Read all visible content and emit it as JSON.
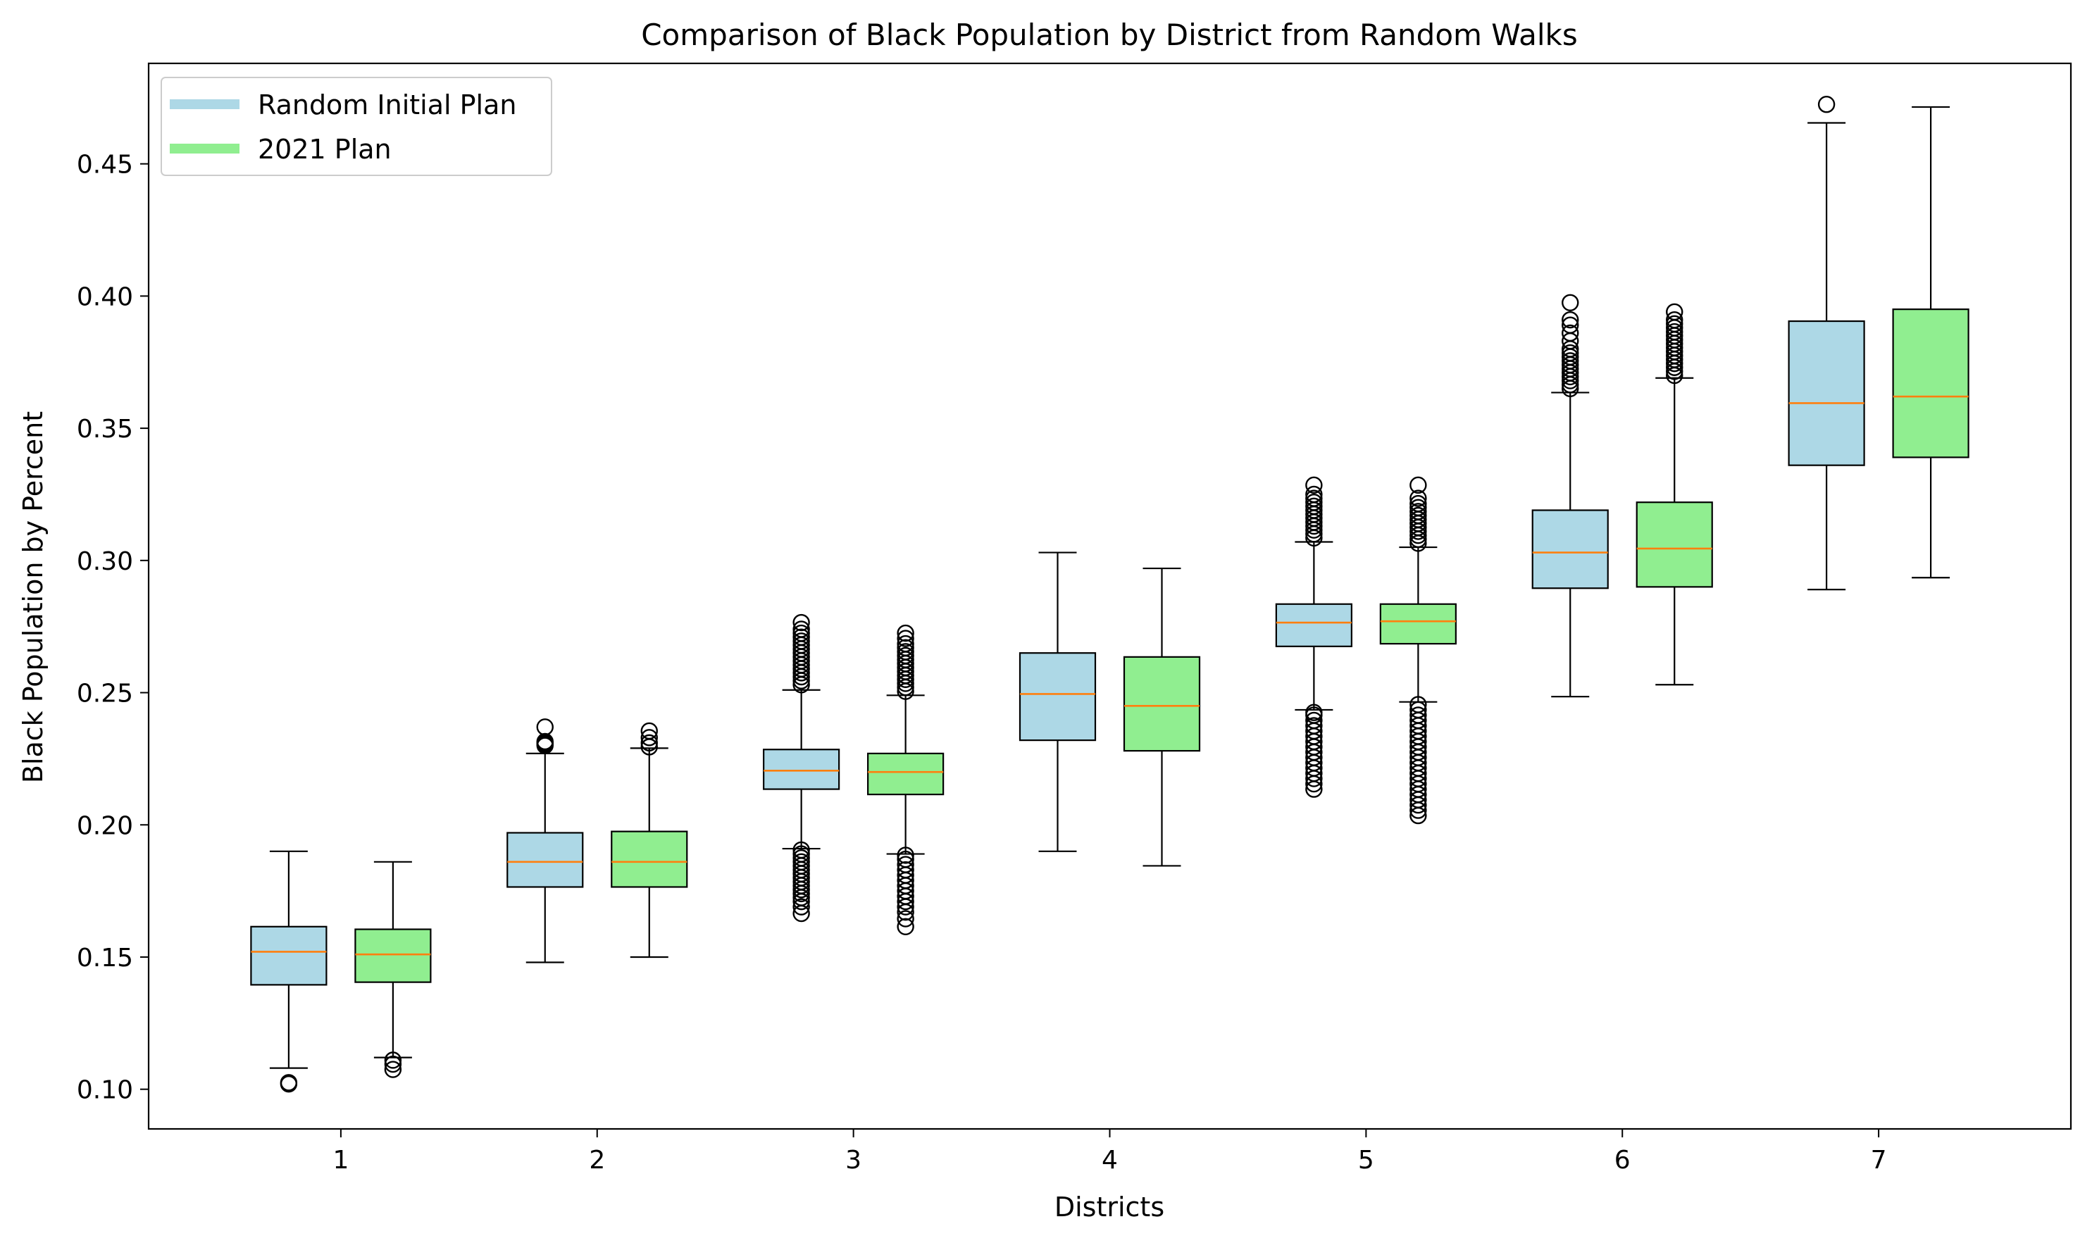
{
  "chart_data": {
    "type": "box",
    "title": "Comparison of Black Population by District from Random Walks",
    "xlabel": "Districts",
    "ylabel": "Black Population by Percent",
    "categories": [
      "1",
      "2",
      "3",
      "4",
      "5",
      "6",
      "7"
    ],
    "ylim": [
      0.085,
      0.488
    ],
    "yticks": [
      0.1,
      0.15,
      0.2,
      0.25,
      0.3,
      0.35,
      0.4,
      0.45
    ],
    "ytick_labels": [
      "0.10",
      "0.15",
      "0.20",
      "0.25",
      "0.30",
      "0.35",
      "0.40",
      "0.45"
    ],
    "legend_position": "upper-left",
    "grid": false,
    "median_color": "#ff7f0e",
    "series": [
      {
        "name": "Random Initial Plan",
        "color": "#add8e6",
        "boxes": [
          {
            "whislo": 0.108,
            "q1": 0.1395,
            "med": 0.152,
            "q3": 0.1615,
            "whishi": 0.19,
            "fliers": [
              0.102,
              0.1025
            ]
          },
          {
            "whislo": 0.148,
            "q1": 0.1765,
            "med": 0.186,
            "q3": 0.197,
            "whishi": 0.227,
            "fliers": [
              0.23,
              0.2305,
              0.231,
              0.2315,
              0.237
            ]
          },
          {
            "whislo": 0.191,
            "q1": 0.2135,
            "med": 0.2205,
            "q3": 0.2285,
            "whishi": 0.251,
            "fliers": [
              0.1665,
              0.169,
              0.171,
              0.1725,
              0.174,
              0.1755,
              0.177,
              0.1785,
              0.18,
              0.1815,
              0.183,
              0.1845,
              0.186,
              0.1875,
              0.189,
              0.1905,
              0.253,
              0.2545,
              0.256,
              0.2575,
              0.259,
              0.2605,
              0.262,
              0.2635,
              0.265,
              0.2665,
              0.268,
              0.2695,
              0.271,
              0.2725,
              0.274,
              0.2765
            ]
          },
          {
            "whislo": 0.19,
            "q1": 0.232,
            "med": 0.2495,
            "q3": 0.265,
            "whishi": 0.303,
            "fliers": []
          },
          {
            "whislo": 0.2435,
            "q1": 0.2675,
            "med": 0.2765,
            "q3": 0.2835,
            "whishi": 0.307,
            "fliers": [
              0.2135,
              0.2155,
              0.2175,
              0.2195,
              0.2215,
              0.2235,
              0.2255,
              0.2275,
              0.2295,
              0.2315,
              0.2335,
              0.2355,
              0.2375,
              0.2395,
              0.2415,
              0.2425,
              0.3085,
              0.31,
              0.3115,
              0.313,
              0.3145,
              0.316,
              0.3175,
              0.319,
              0.3205,
              0.322,
              0.3235,
              0.325,
              0.3285
            ]
          },
          {
            "whislo": 0.2485,
            "q1": 0.2895,
            "med": 0.303,
            "q3": 0.319,
            "whishi": 0.3635,
            "fliers": [
              0.365,
              0.3665,
              0.368,
              0.3695,
              0.371,
              0.3725,
              0.374,
              0.3755,
              0.377,
              0.3785,
              0.38,
              0.383,
              0.386,
              0.389,
              0.391,
              0.3975
            ]
          },
          {
            "whislo": 0.289,
            "q1": 0.336,
            "med": 0.3595,
            "q3": 0.3905,
            "whishi": 0.4655,
            "fliers": [
              0.4725
            ]
          }
        ]
      },
      {
        "name": "2021 Plan",
        "color": "#90ee90",
        "boxes": [
          {
            "whislo": 0.112,
            "q1": 0.1405,
            "med": 0.151,
            "q3": 0.1605,
            "whishi": 0.186,
            "fliers": [
              0.1075,
              0.1095,
              0.111
            ]
          },
          {
            "whislo": 0.15,
            "q1": 0.1765,
            "med": 0.186,
            "q3": 0.1975,
            "whishi": 0.229,
            "fliers": [
              0.2295,
              0.231,
              0.233,
              0.2355
            ]
          },
          {
            "whislo": 0.189,
            "q1": 0.2115,
            "med": 0.22,
            "q3": 0.227,
            "whishi": 0.249,
            "fliers": [
              0.1615,
              0.1645,
              0.167,
              0.169,
              0.171,
              0.173,
              0.175,
              0.177,
              0.179,
              0.181,
              0.183,
              0.185,
              0.187,
              0.1885,
              0.2505,
              0.252,
              0.2535,
              0.255,
              0.2565,
              0.258,
              0.2595,
              0.261,
              0.2625,
              0.264,
              0.2655,
              0.267,
              0.2685,
              0.2705,
              0.2725
            ]
          },
          {
            "whislo": 0.1845,
            "q1": 0.228,
            "med": 0.245,
            "q3": 0.2635,
            "whishi": 0.297,
            "fliers": []
          },
          {
            "whislo": 0.2465,
            "q1": 0.2685,
            "med": 0.277,
            "q3": 0.2835,
            "whishi": 0.305,
            "fliers": [
              0.2035,
              0.2055,
              0.2075,
              0.2095,
              0.2115,
              0.2135,
              0.2155,
              0.2175,
              0.2195,
              0.2215,
              0.2235,
              0.2255,
              0.2275,
              0.2295,
              0.2315,
              0.2335,
              0.2355,
              0.2375,
              0.2395,
              0.2415,
              0.2435,
              0.2455,
              0.3065,
              0.308,
              0.3095,
              0.311,
              0.3125,
              0.314,
              0.3155,
              0.317,
              0.3185,
              0.32,
              0.3215,
              0.3235,
              0.3285
            ]
          },
          {
            "whislo": 0.253,
            "q1": 0.29,
            "med": 0.3045,
            "q3": 0.322,
            "whishi": 0.369,
            "fliers": [
              0.37,
              0.3715,
              0.373,
              0.3745,
              0.376,
              0.3775,
              0.379,
              0.3805,
              0.382,
              0.3835,
              0.385,
              0.3865,
              0.388,
              0.3895,
              0.391,
              0.394
            ]
          },
          {
            "whislo": 0.2935,
            "q1": 0.339,
            "med": 0.362,
            "q3": 0.395,
            "whishi": 0.4715,
            "fliers": []
          }
        ]
      }
    ]
  }
}
